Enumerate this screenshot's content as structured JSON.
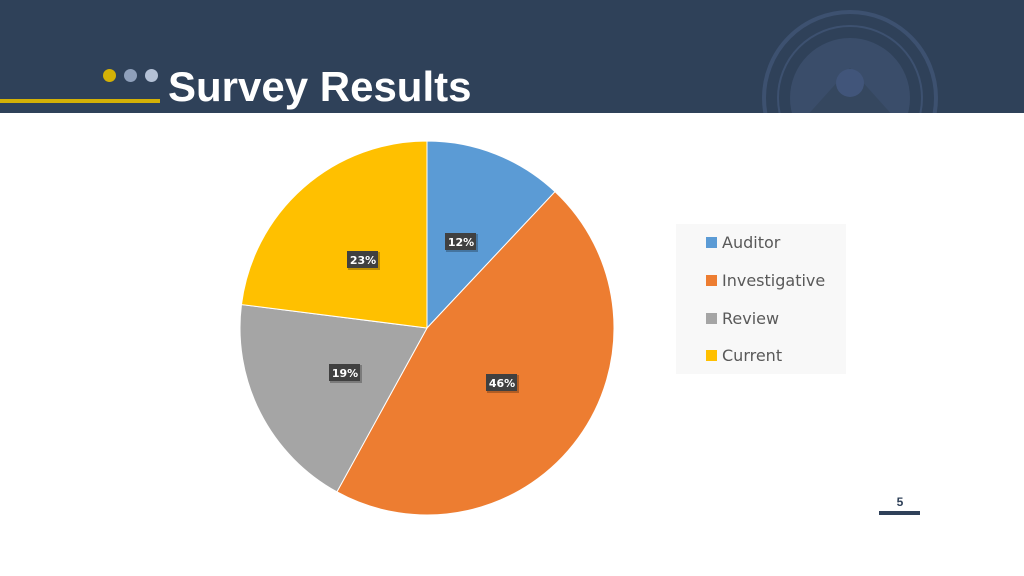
{
  "slide": {
    "title": "Survey Results",
    "page_number": "5"
  },
  "colors": {
    "header_bg": "#2f4159",
    "accent_gold": "#d4b106",
    "dot_light": "#8fa0bb",
    "dot_lighter": "#b4c1d6",
    "label_bg": "#404040"
  },
  "chart_data": {
    "type": "pie",
    "title": "",
    "categories": [
      "Auditor",
      "Investigative",
      "Review",
      "Current"
    ],
    "values": [
      12,
      46,
      19,
      23
    ],
    "labels": [
      "12%",
      "46%",
      "19%",
      "23%"
    ],
    "colors": [
      "#5b9bd5",
      "#ed7d31",
      "#a5a5a5",
      "#ffc000"
    ],
    "legend_position": "right"
  }
}
